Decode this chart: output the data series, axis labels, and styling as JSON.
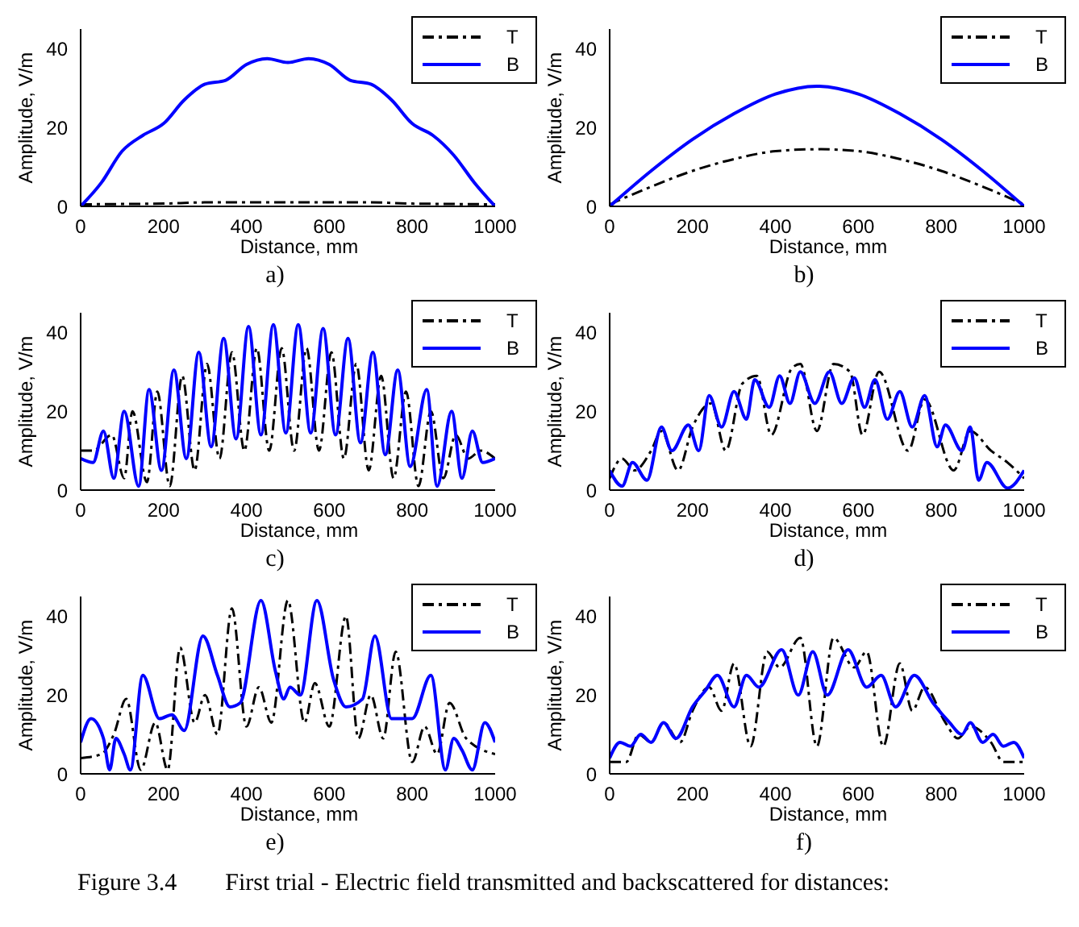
{
  "chart_data": [
    {
      "type": "line",
      "xlabel": "Distance, mm",
      "ylabel": "Amplitude, V/m",
      "xlim": [
        0,
        1000
      ],
      "ylim": [
        0,
        45
      ],
      "xticks": [
        0,
        200,
        400,
        600,
        800,
        1000
      ],
      "yticks": [
        0,
        20,
        40
      ],
      "legend": "top right",
      "annotations": [
        "a)"
      ],
      "series": [
        {
          "name": "T",
          "color": "#000000",
          "line_style": "dashdot",
          "x": [
            0,
            100,
            200,
            300,
            400,
            500,
            600,
            700,
            800,
            900,
            1000
          ],
          "values": [
            0.5,
            0.6,
            0.7,
            1,
            1,
            1,
            1,
            1,
            0.7,
            0.6,
            0.5
          ]
        },
        {
          "name": "B",
          "color": "#0000ff",
          "line_style": "solid",
          "x": [
            0,
            50,
            100,
            150,
            200,
            250,
            300,
            350,
            400,
            450,
            500,
            550,
            600,
            650,
            700,
            750,
            800,
            850,
            900,
            950,
            1000
          ],
          "values": [
            0,
            6,
            14,
            18,
            21,
            27,
            31,
            32,
            36,
            37.5,
            36.5,
            37.5,
            36,
            32,
            31,
            27,
            21,
            18,
            13,
            6,
            0
          ]
        }
      ]
    },
    {
      "type": "line",
      "xlabel": "Distance, mm",
      "ylabel": "Amplitude, V/m",
      "xlim": [
        0,
        1000
      ],
      "ylim": [
        0,
        45
      ],
      "xticks": [
        0,
        200,
        400,
        600,
        800,
        1000
      ],
      "yticks": [
        0,
        20,
        40
      ],
      "legend": "top right",
      "annotations": [
        "b)"
      ],
      "series": [
        {
          "name": "T",
          "color": "#000000",
          "line_style": "dashdot",
          "x": [
            0,
            100,
            200,
            300,
            400,
            500,
            600,
            700,
            800,
            900,
            1000
          ],
          "values": [
            0.5,
            5,
            9,
            12,
            14,
            14.5,
            14,
            12,
            9,
            5,
            0.5
          ]
        },
        {
          "name": "B",
          "color": "#0000ff",
          "line_style": "solid",
          "x": [
            0,
            100,
            200,
            300,
            400,
            500,
            600,
            700,
            800,
            900,
            1000
          ],
          "values": [
            0,
            9,
            17,
            23.5,
            28.5,
            30.5,
            28.5,
            23.5,
            17,
            9,
            0
          ]
        }
      ]
    },
    {
      "type": "line",
      "xlabel": "Distance, mm",
      "ylabel": "Amplitude, V/m",
      "xlim": [
        0,
        1000
      ],
      "ylim": [
        0,
        45
      ],
      "xticks": [
        0,
        200,
        400,
        600,
        800,
        1000
      ],
      "yticks": [
        0,
        20,
        40
      ],
      "legend": "top right",
      "annotations": [
        "c)"
      ],
      "series": [
        {
          "name": "T",
          "color": "#000000",
          "line_style": "dashdot",
          "x": [
            0,
            30,
            75,
            105,
            125,
            160,
            185,
            215,
            245,
            275,
            305,
            335,
            365,
            395,
            425,
            455,
            485,
            515,
            545,
            575,
            605,
            635,
            665,
            695,
            725,
            755,
            785,
            815,
            845,
            875,
            905,
            935,
            965,
            1000
          ],
          "values": [
            10,
            10,
            14,
            3,
            20,
            2,
            25,
            1,
            29,
            5,
            32,
            8,
            35,
            10,
            36,
            10,
            36,
            10,
            36,
            10,
            35,
            8,
            32,
            5,
            29,
            3,
            25,
            1,
            20,
            3,
            14,
            8,
            10,
            8
          ]
        },
        {
          "name": "B",
          "color": "#0000ff",
          "line_style": "solid",
          "x": [
            0,
            30,
            55,
            80,
            105,
            140,
            165,
            195,
            225,
            255,
            285,
            315,
            345,
            375,
            405,
            435,
            465,
            495,
            525,
            555,
            585,
            615,
            645,
            675,
            705,
            735,
            765,
            795,
            835,
            860,
            895,
            920,
            945,
            970,
            1000
          ],
          "values": [
            8,
            7,
            15,
            3,
            20,
            1,
            25.5,
            5,
            30.5,
            8,
            35,
            11,
            38.5,
            13,
            41.5,
            14,
            42,
            14.5,
            42,
            14.5,
            41,
            14,
            38.5,
            12,
            35,
            9,
            30.5,
            6,
            25.5,
            1,
            20,
            3,
            15,
            7,
            8
          ]
        }
      ]
    },
    {
      "type": "line",
      "xlabel": "Distance, mm",
      "ylabel": "Amplitude, V/m",
      "xlim": [
        0,
        1000
      ],
      "ylim": [
        0,
        45
      ],
      "xticks": [
        0,
        200,
        400,
        600,
        800,
        1000
      ],
      "yticks": [
        0,
        20,
        40
      ],
      "legend": "top right",
      "annotations": [
        "d)"
      ],
      "series": [
        {
          "name": "T",
          "color": "#000000",
          "line_style": "dashdot",
          "x": [
            0,
            30,
            60,
            100,
            125,
            165,
            200,
            245,
            280,
            320,
            355,
            390,
            440,
            460,
            500,
            540,
            580,
            610,
            650,
            720,
            760,
            830,
            870,
            920,
            960,
            1000
          ],
          "values": [
            3,
            8,
            5,
            10,
            15,
            5,
            16,
            22,
            10,
            27,
            29,
            14,
            31,
            32,
            15,
            32,
            30,
            14,
            30,
            10,
            23,
            5,
            15,
            10,
            7,
            3
          ]
        },
        {
          "name": "B",
          "color": "#0000ff",
          "line_style": "solid",
          "x": [
            0,
            30,
            55,
            90,
            125,
            150,
            190,
            215,
            240,
            270,
            300,
            330,
            350,
            385,
            410,
            435,
            460,
            495,
            530,
            560,
            590,
            615,
            640,
            670,
            700,
            730,
            760,
            790,
            810,
            850,
            870,
            890,
            910,
            960,
            1000
          ],
          "values": [
            5,
            1,
            7,
            2.5,
            16,
            10,
            16.5,
            10,
            24,
            16,
            25,
            18,
            28,
            21,
            29,
            22,
            30,
            22,
            30,
            22,
            28.5,
            21,
            28,
            18,
            25,
            16,
            24,
            11,
            16.5,
            10,
            16,
            2.5,
            7,
            0.5,
            5
          ]
        }
      ]
    },
    {
      "type": "line",
      "xlabel": "Distance, mm",
      "ylabel": "Amplitude, V/m",
      "xlim": [
        0,
        1000
      ],
      "ylim": [
        0,
        45
      ],
      "xticks": [
        0,
        200,
        400,
        600,
        800,
        1000
      ],
      "yticks": [
        0,
        20,
        40
      ],
      "legend": "top right",
      "annotations": [
        "e)"
      ],
      "series": [
        {
          "name": "T",
          "color": "#000000",
          "line_style": "dashdot",
          "x": [
            0,
            50,
            80,
            110,
            145,
            180,
            210,
            240,
            275,
            300,
            330,
            365,
            400,
            430,
            460,
            500,
            540,
            565,
            600,
            640,
            670,
            700,
            730,
            760,
            800,
            830,
            860,
            890,
            930,
            1000
          ],
          "values": [
            4,
            5,
            10,
            19,
            1,
            13,
            1,
            32,
            13,
            20,
            10,
            42,
            12,
            22,
            13,
            44,
            13,
            23,
            12,
            40,
            9,
            20,
            9,
            31,
            3,
            12,
            5,
            18,
            9,
            5
          ]
        },
        {
          "name": "B",
          "color": "#0000ff",
          "line_style": "solid",
          "x": [
            0,
            25,
            55,
            70,
            85,
            105,
            120,
            150,
            190,
            220,
            250,
            295,
            330,
            360,
            385,
            435,
            470,
            490,
            505,
            530,
            570,
            610,
            640,
            680,
            710,
            750,
            800,
            845,
            880,
            900,
            920,
            945,
            975,
            1000
          ],
          "values": [
            8,
            14,
            9,
            1,
            9,
            5,
            1,
            25,
            14,
            15,
            11,
            35,
            25,
            17,
            18,
            44,
            26,
            19,
            22,
            20,
            44,
            24,
            17,
            19,
            35,
            14,
            14,
            25,
            1,
            9,
            6,
            1,
            13,
            8
          ]
        }
      ]
    },
    {
      "type": "line",
      "xlabel": "Distance, mm",
      "ylabel": "Amplitude, V/m",
      "xlim": [
        0,
        1000
      ],
      "ylim": [
        0,
        45
      ],
      "xticks": [
        0,
        200,
        400,
        600,
        800,
        1000
      ],
      "yticks": [
        0,
        20,
        40
      ],
      "legend": "top right",
      "annotations": [
        "f)",
        "Figure 3.4        First trial - Electric field transmitted and backscattered for distances:"
      ],
      "series": [
        {
          "name": "T",
          "color": "#000000",
          "line_style": "dashdot",
          "x": [
            0,
            40,
            70,
            100,
            130,
            170,
            200,
            240,
            270,
            300,
            340,
            380,
            410,
            460,
            500,
            540,
            590,
            620,
            660,
            700,
            730,
            760,
            810,
            840,
            870,
            920,
            950,
            1000
          ],
          "values": [
            3,
            3,
            10,
            8,
            13,
            8,
            16,
            22,
            16,
            28,
            7,
            31,
            27,
            34.5,
            7,
            34.5,
            27,
            31,
            7,
            28,
            16,
            22,
            13,
            9,
            12,
            8,
            3,
            3
          ]
        },
        {
          "name": "B",
          "color": "#0000ff",
          "line_style": "solid",
          "x": [
            0,
            25,
            50,
            75,
            100,
            130,
            160,
            200,
            230,
            260,
            300,
            330,
            360,
            415,
            455,
            490,
            525,
            575,
            620,
            655,
            690,
            735,
            780,
            820,
            850,
            870,
            900,
            925,
            950,
            975,
            1000
          ],
          "values": [
            4,
            8,
            7,
            10,
            8,
            13,
            9,
            17,
            21,
            25,
            17,
            25,
            22,
            31.5,
            20,
            31,
            20,
            31.5,
            22,
            25,
            17,
            25,
            18,
            13,
            10,
            13,
            8,
            10,
            7,
            8,
            4
          ]
        }
      ]
    }
  ]
}
